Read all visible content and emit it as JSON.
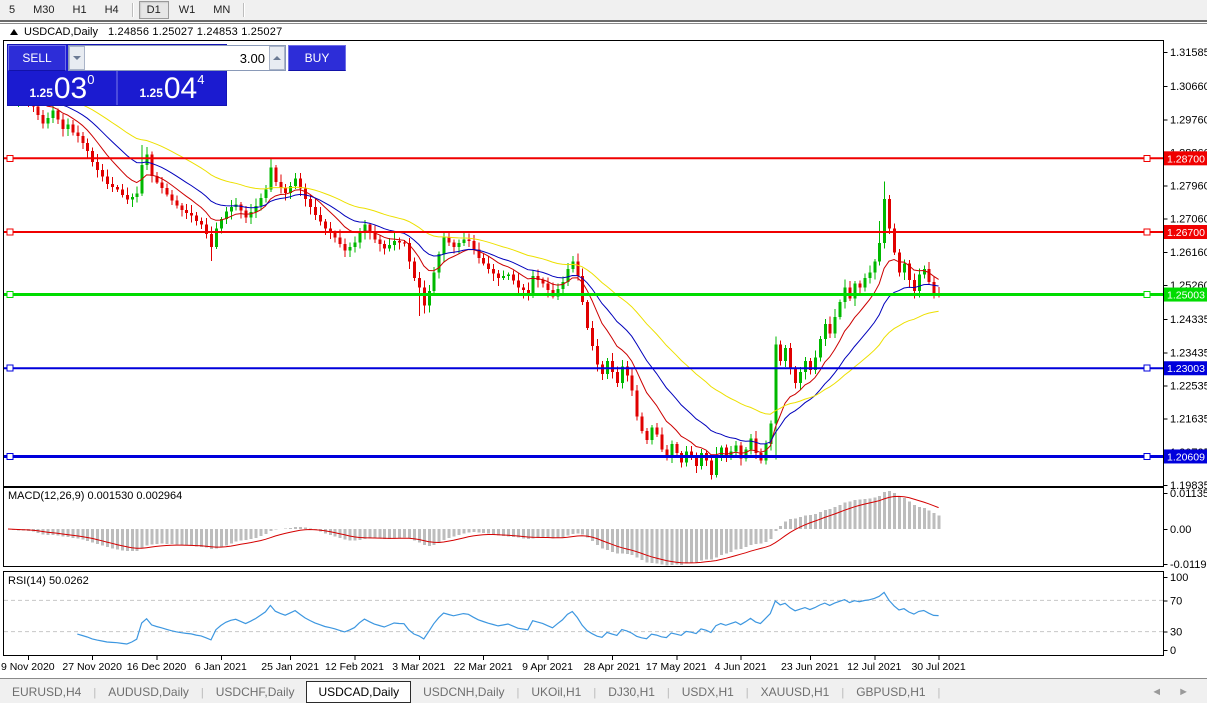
{
  "toolbar": {
    "items": [
      {
        "label": "5",
        "active": false
      },
      {
        "label": "M30",
        "active": false
      },
      {
        "label": "H1",
        "active": false
      },
      {
        "label": "H4",
        "active": false
      },
      {
        "label": "D1",
        "active": true
      },
      {
        "label": "W1",
        "active": false
      },
      {
        "label": "MN",
        "active": false
      }
    ]
  },
  "window": {
    "title": "USDCAD,Daily",
    "ohlc": "1.24856 1.25027 1.24853 1.25027"
  },
  "trade_panel": {
    "sell_label": "SELL",
    "buy_label": "BUY",
    "volume": "3.00",
    "sell_price": {
      "small": "1.25",
      "big": "03",
      "sup": "0"
    },
    "buy_price": {
      "small": "1.25",
      "big": "04",
      "sup": "4"
    }
  },
  "price_axis": {
    "ticks": [
      {
        "label": "1.31585",
        "price": 1.31585
      },
      {
        "label": "1.30660",
        "price": 1.3066
      },
      {
        "label": "1.29760",
        "price": 1.2976
      },
      {
        "label": "1.28860",
        "price": 1.2886
      },
      {
        "label": "1.27960",
        "price": 1.2796
      },
      {
        "label": "1.27060",
        "price": 1.2706
      },
      {
        "label": "1.26160",
        "price": 1.2616
      },
      {
        "label": "1.25260",
        "price": 1.2526
      },
      {
        "label": "1.24335",
        "price": 1.24335
      },
      {
        "label": "1.23435",
        "price": 1.23435
      },
      {
        "label": "1.22535",
        "price": 1.22535
      },
      {
        "label": "1.21635",
        "price": 1.21635
      },
      {
        "label": "1.20735",
        "price": 1.20735
      },
      {
        "label": "1.19835",
        "price": 1.19835
      }
    ]
  },
  "levels": [
    {
      "label": "1.28700",
      "price": 1.287,
      "color": "#f00000",
      "width": 2
    },
    {
      "label": "1.26700",
      "price": 1.267,
      "color": "#f00000",
      "width": 2
    },
    {
      "label": "1.25003",
      "price": 1.25003,
      "color": "#00dc00",
      "width": 3
    },
    {
      "label": "1.23003",
      "price": 1.23003,
      "color": "#0000dc",
      "width": 2
    },
    {
      "label": "1.20609",
      "price": 1.20609,
      "color": "#0000dc",
      "width": 3
    }
  ],
  "macd_panel": {
    "label": "MACD(12,26,9) 0.001530 0.002964",
    "main_value": "0.001530",
    "signal_value": "0.002964",
    "axis": [
      {
        "label": "0.01135",
        "value": 0.01135
      },
      {
        "label": "0.00",
        "value": 0
      },
      {
        "label": "-0.011904",
        "value": -0.0119
      }
    ]
  },
  "rsi_panel": {
    "label": "RSI(14) 50.0262",
    "value": "50.0262",
    "axis": [
      {
        "label": "100",
        "value": 100
      },
      {
        "label": "70",
        "value": 70
      },
      {
        "label": "30",
        "value": 30
      },
      {
        "label": "0",
        "value": 0
      }
    ],
    "levels": [
      70,
      30
    ]
  },
  "date_axis": {
    "ticks": [
      {
        "label": "9 Nov 2020",
        "bar": 4
      },
      {
        "label": "27 Nov 2020",
        "bar": 17
      },
      {
        "label": "16 Dec 2020",
        "bar": 30
      },
      {
        "label": "6 Jan 2021",
        "bar": 43
      },
      {
        "label": "25 Jan 2021",
        "bar": 57
      },
      {
        "label": "12 Feb 2021",
        "bar": 70
      },
      {
        "label": "3 Mar 2021",
        "bar": 83
      },
      {
        "label": "22 Mar 2021",
        "bar": 96
      },
      {
        "label": "9 Apr 2021",
        "bar": 109
      },
      {
        "label": "28 Apr 2021",
        "bar": 122
      },
      {
        "label": "17 May 2021",
        "bar": 135
      },
      {
        "label": "4 Jun 2021",
        "bar": 148
      },
      {
        "label": "23 Jun 2021",
        "bar": 162
      },
      {
        "label": "12 Jul 2021",
        "bar": 175
      },
      {
        "label": "30 Jul 2021",
        "bar": 188
      }
    ]
  },
  "tabs": {
    "items": [
      {
        "label": "EURUSD,H4",
        "active": false
      },
      {
        "label": "AUDUSD,Daily",
        "active": false
      },
      {
        "label": "USDCHF,Daily",
        "active": false
      },
      {
        "label": "USDCAD,Daily",
        "active": true
      },
      {
        "label": "USDCNH,Daily",
        "active": false
      },
      {
        "label": "UKOil,H1",
        "active": false
      },
      {
        "label": "DJ30,H1",
        "active": false
      },
      {
        "label": "USDX,H1",
        "active": false
      },
      {
        "label": "XAUUSD,H1",
        "active": false
      },
      {
        "label": "GBPUSD,H1",
        "active": false
      }
    ],
    "scroll_left_icon": "◄",
    "scroll_right_icon": "►"
  },
  "chart_data": [
    {
      "type": "candlestick",
      "title": "USDCAD,Daily",
      "ohlc_display": "O 1.24856  H 1.25027  L 1.24853  C 1.25027",
      "ylim": [
        1.19835,
        1.31585
      ],
      "up_color": "#00b800",
      "down_color": "#e00000",
      "ma": [
        {
          "name": "MA-fast",
          "period": 10,
          "color": "#cc0000"
        },
        {
          "name": "MA-medium",
          "period": 20,
          "color": "#0000bb"
        },
        {
          "name": "MA-slow",
          "period": 40,
          "color": "#ede000"
        }
      ],
      "closes": [
        1.306,
        1.302,
        1.3035,
        1.3048,
        1.303,
        1.301,
        1.2988,
        1.2965,
        1.298,
        1.3,
        1.2975,
        1.295,
        1.2962,
        1.294,
        1.293,
        1.2912,
        1.289,
        1.286,
        1.2838,
        1.282,
        1.28,
        1.2792,
        1.2785,
        1.277,
        1.2758,
        1.2765,
        1.2775,
        1.2852,
        1.288,
        1.2822,
        1.2805,
        1.279,
        1.2772,
        1.2755,
        1.2742,
        1.273,
        1.2722,
        1.2715,
        1.27,
        1.269,
        1.2665,
        1.263,
        1.268,
        1.2705,
        1.2725,
        1.2738,
        1.2745,
        1.2728,
        1.271,
        1.2724,
        1.274,
        1.2762,
        1.2786,
        1.2845,
        1.2806,
        1.279,
        1.2776,
        1.2795,
        1.2815,
        1.2788,
        1.276,
        1.2738,
        1.2716,
        1.2698,
        1.268,
        1.2668,
        1.2655,
        1.2638,
        1.262,
        1.263,
        1.2642,
        1.2668,
        1.269,
        1.267,
        1.265,
        1.2638,
        1.2625,
        1.2635,
        1.2645,
        1.2642,
        1.264,
        1.259,
        1.2545,
        1.252,
        1.247,
        1.251,
        1.256,
        1.261,
        1.2655,
        1.2642,
        1.263,
        1.264,
        1.265,
        1.2645,
        1.2622,
        1.26,
        1.2585,
        1.257,
        1.2558,
        1.2545,
        1.255,
        1.2555,
        1.2538,
        1.252,
        1.2512,
        1.2505,
        1.255,
        1.254,
        1.253,
        1.2512,
        1.2495,
        1.2515,
        1.2535,
        1.257,
        1.259,
        1.255,
        1.248,
        1.241,
        1.236,
        1.231,
        1.2285,
        1.232,
        1.229,
        1.226,
        1.2305,
        1.228,
        1.224,
        1.217,
        1.213,
        1.2105,
        1.214,
        1.212,
        1.208,
        1.206,
        1.2095,
        1.207,
        1.2045,
        1.2075,
        1.206,
        1.2035,
        1.207,
        1.205,
        1.201,
        1.2065,
        1.2085,
        1.206,
        1.2075,
        1.209,
        1.2055,
        1.208,
        1.211,
        1.207,
        1.205,
        1.2095,
        1.215,
        1.2365,
        1.232,
        1.2355,
        1.23,
        1.226,
        1.229,
        1.232,
        1.2295,
        1.233,
        1.238,
        1.242,
        1.2395,
        1.244,
        1.248,
        1.252,
        1.249,
        1.253,
        1.252,
        1.2545,
        1.256,
        1.259,
        1.264,
        1.276,
        1.268,
        1.2615,
        1.256,
        1.2585,
        1.254,
        1.251,
        1.2555,
        1.257,
        1.2535,
        1.2505,
        1.25027
      ],
      "wick_overrides": {
        "0": {
          "h": 1.3105
        },
        "27": {
          "h": 1.2906
        },
        "41": {
          "l": 1.2592
        },
        "53": {
          "h": 1.2872
        },
        "83": {
          "l": 1.2442
        },
        "142": {
          "l": 1.1998
        },
        "155": {
          "l": 1.2052
        },
        "176": {
          "h": 1.27
        },
        "177": {
          "h": 1.2807
        }
      }
    },
    {
      "type": "macd",
      "params": [
        12,
        26,
        9
      ],
      "current_main": 0.00153,
      "current_signal": 0.002964,
      "hist_color": "#bdbdbd",
      "signal_color": "#d40000",
      "ylim": [
        -0.0119,
        0.01135
      ]
    },
    {
      "type": "rsi",
      "period": 14,
      "current": 50.0262,
      "color": "#3d97e0",
      "levels": [
        70,
        30
      ],
      "ylim": [
        0,
        100
      ]
    }
  ]
}
